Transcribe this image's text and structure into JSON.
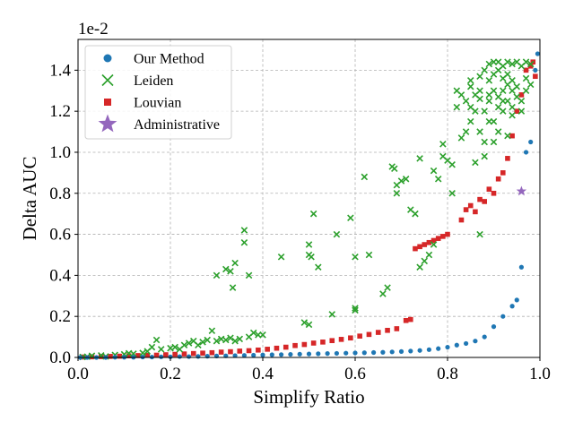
{
  "chart_data": {
    "type": "scatter",
    "title": "",
    "xlabel": "Simplify Ratio",
    "ylabel": "Delta AUC",
    "scale_label": "1e-2",
    "xlim": [
      0,
      1
    ],
    "ylim": [
      0,
      1.55
    ],
    "xticks": [
      0.0,
      0.2,
      0.4,
      0.6,
      0.8,
      1.0
    ],
    "xtick_labels": [
      "0.0",
      "0.2",
      "0.4",
      "0.6",
      "0.8",
      "1.0"
    ],
    "yticks": [
      0.0,
      0.2,
      0.4,
      0.6,
      0.8,
      1.0,
      1.2,
      1.4
    ],
    "ytick_labels": [
      "0.0",
      "0.2",
      "0.4",
      "0.6",
      "0.8",
      "1.0",
      "1.2",
      "1.4"
    ],
    "grid": true,
    "legend_position": "top-left",
    "series": [
      {
        "name": "Our Method",
        "marker": "circle",
        "color": "#1f77b4",
        "points": [
          [
            0.005,
            0.0
          ],
          [
            0.02,
            0.0
          ],
          [
            0.04,
            0.0
          ],
          [
            0.06,
            0.0
          ],
          [
            0.08,
            0.001
          ],
          [
            0.1,
            0.001
          ],
          [
            0.12,
            0.001
          ],
          [
            0.14,
            0.002
          ],
          [
            0.16,
            0.002
          ],
          [
            0.18,
            0.003
          ],
          [
            0.2,
            0.003
          ],
          [
            0.22,
            0.004
          ],
          [
            0.24,
            0.004
          ],
          [
            0.26,
            0.005
          ],
          [
            0.28,
            0.006
          ],
          [
            0.3,
            0.007
          ],
          [
            0.32,
            0.008
          ],
          [
            0.34,
            0.009
          ],
          [
            0.36,
            0.01
          ],
          [
            0.38,
            0.011
          ],
          [
            0.4,
            0.012
          ],
          [
            0.42,
            0.013
          ],
          [
            0.44,
            0.014
          ],
          [
            0.46,
            0.015
          ],
          [
            0.48,
            0.016
          ],
          [
            0.5,
            0.017
          ],
          [
            0.52,
            0.018
          ],
          [
            0.54,
            0.019
          ],
          [
            0.56,
            0.02
          ],
          [
            0.58,
            0.021
          ],
          [
            0.6,
            0.022
          ],
          [
            0.62,
            0.023
          ],
          [
            0.64,
            0.024
          ],
          [
            0.66,
            0.025
          ],
          [
            0.68,
            0.027
          ],
          [
            0.7,
            0.029
          ],
          [
            0.72,
            0.031
          ],
          [
            0.74,
            0.034
          ],
          [
            0.76,
            0.038
          ],
          [
            0.78,
            0.043
          ],
          [
            0.8,
            0.05
          ],
          [
            0.82,
            0.06
          ],
          [
            0.84,
            0.068
          ],
          [
            0.86,
            0.08
          ],
          [
            0.88,
            0.1
          ],
          [
            0.9,
            0.15
          ],
          [
            0.92,
            0.2
          ],
          [
            0.94,
            0.25
          ],
          [
            0.95,
            0.28
          ],
          [
            0.96,
            0.44
          ],
          [
            0.97,
            1.0
          ],
          [
            0.98,
            1.05
          ],
          [
            0.99,
            1.4
          ],
          [
            0.995,
            1.48
          ]
        ]
      },
      {
        "name": "Leiden",
        "marker": "x",
        "color": "#2ca02c",
        "points": [
          [
            0.01,
            0.002
          ],
          [
            0.02,
            0.004
          ],
          [
            0.03,
            0.008
          ],
          [
            0.05,
            0.01
          ],
          [
            0.06,
            0.005
          ],
          [
            0.08,
            0.012
          ],
          [
            0.1,
            0.015
          ],
          [
            0.11,
            0.02
          ],
          [
            0.12,
            0.018
          ],
          [
            0.14,
            0.022
          ],
          [
            0.15,
            0.03
          ],
          [
            0.16,
            0.05
          ],
          [
            0.17,
            0.085
          ],
          [
            0.18,
            0.04
          ],
          [
            0.2,
            0.045
          ],
          [
            0.21,
            0.05
          ],
          [
            0.22,
            0.04
          ],
          [
            0.23,
            0.06
          ],
          [
            0.24,
            0.07
          ],
          [
            0.25,
            0.08
          ],
          [
            0.26,
            0.06
          ],
          [
            0.27,
            0.075
          ],
          [
            0.28,
            0.085
          ],
          [
            0.29,
            0.13
          ],
          [
            0.3,
            0.08
          ],
          [
            0.31,
            0.09
          ],
          [
            0.32,
            0.085
          ],
          [
            0.33,
            0.095
          ],
          [
            0.34,
            0.08
          ],
          [
            0.35,
            0.09
          ],
          [
            0.37,
            0.1
          ],
          [
            0.38,
            0.12
          ],
          [
            0.39,
            0.11
          ],
          [
            0.4,
            0.11
          ],
          [
            0.3,
            0.4
          ],
          [
            0.32,
            0.43
          ],
          [
            0.33,
            0.42
          ],
          [
            0.335,
            0.34
          ],
          [
            0.34,
            0.46
          ],
          [
            0.36,
            0.56
          ],
          [
            0.36,
            0.62
          ],
          [
            0.37,
            0.4
          ],
          [
            0.44,
            0.49
          ],
          [
            0.5,
            0.5
          ],
          [
            0.5,
            0.55
          ],
          [
            0.505,
            0.49
          ],
          [
            0.51,
            0.7
          ],
          [
            0.52,
            0.44
          ],
          [
            0.49,
            0.17
          ],
          [
            0.5,
            0.16
          ],
          [
            0.55,
            0.21
          ],
          [
            0.56,
            0.6
          ],
          [
            0.59,
            0.68
          ],
          [
            0.6,
            0.49
          ],
          [
            0.6,
            0.24
          ],
          [
            0.6,
            0.23
          ],
          [
            0.62,
            0.88
          ],
          [
            0.63,
            0.5
          ],
          [
            0.66,
            0.31
          ],
          [
            0.67,
            0.34
          ],
          [
            0.68,
            0.93
          ],
          [
            0.685,
            0.92
          ],
          [
            0.69,
            0.84
          ],
          [
            0.69,
            0.8
          ],
          [
            0.7,
            0.86
          ],
          [
            0.71,
            0.87
          ],
          [
            0.72,
            0.72
          ],
          [
            0.73,
            0.7
          ],
          [
            0.74,
            0.97
          ],
          [
            0.74,
            0.44
          ],
          [
            0.75,
            0.47
          ],
          [
            0.76,
            0.5
          ],
          [
            0.77,
            0.55
          ],
          [
            0.77,
            0.91
          ],
          [
            0.78,
            0.87
          ],
          [
            0.79,
            1.04
          ],
          [
            0.79,
            0.98
          ],
          [
            0.8,
            0.96
          ],
          [
            0.81,
            0.8
          ],
          [
            0.81,
            0.94
          ],
          [
            0.82,
            1.3
          ],
          [
            0.82,
            1.22
          ],
          [
            0.83,
            1.07
          ],
          [
            0.84,
            1.25
          ],
          [
            0.84,
            1.1
          ],
          [
            0.85,
            1.35
          ],
          [
            0.85,
            1.15
          ],
          [
            0.86,
            1.2
          ],
          [
            0.86,
            1.28
          ],
          [
            0.87,
            1.3
          ],
          [
            0.87,
            1.1
          ],
          [
            0.88,
            1.4
          ],
          [
            0.88,
            1.2
          ],
          [
            0.88,
            1.05
          ],
          [
            0.89,
            1.35
          ],
          [
            0.89,
            1.25
          ],
          [
            0.9,
            1.44
          ],
          [
            0.9,
            1.3
          ],
          [
            0.9,
            1.15
          ],
          [
            0.91,
            1.4
          ],
          [
            0.91,
            1.27
          ],
          [
            0.92,
            1.42
          ],
          [
            0.92,
            1.3
          ],
          [
            0.92,
            1.2
          ],
          [
            0.93,
            1.38
          ],
          [
            0.93,
            1.25
          ],
          [
            0.94,
            1.43
          ],
          [
            0.94,
            1.3
          ],
          [
            0.94,
            1.18
          ],
          [
            0.95,
            1.44
          ],
          [
            0.95,
            1.32
          ],
          [
            0.96,
            1.42
          ],
          [
            0.96,
            1.25
          ],
          [
            0.97,
            1.3
          ],
          [
            0.97,
            1.44
          ],
          [
            0.98,
            1.43
          ],
          [
            0.98,
            1.33
          ],
          [
            0.87,
            0.6
          ],
          [
            0.86,
            0.95
          ],
          [
            0.88,
            0.98
          ],
          [
            0.89,
            1.43
          ],
          [
            0.91,
            1.44
          ],
          [
            0.93,
            1.44
          ],
          [
            0.96,
            1.2
          ],
          [
            0.85,
            1.32
          ],
          [
            0.87,
            1.37
          ],
          [
            0.9,
            1.38
          ],
          [
            0.92,
            1.36
          ],
          [
            0.94,
            1.35
          ],
          [
            0.83,
            1.28
          ],
          [
            0.85,
            1.22
          ],
          [
            0.87,
            1.26
          ],
          [
            0.89,
            1.28
          ],
          [
            0.91,
            1.22
          ],
          [
            0.93,
            1.33
          ],
          [
            0.95,
            1.27
          ],
          [
            0.97,
            1.36
          ],
          [
            0.89,
            1.15
          ],
          [
            0.91,
            1.1
          ],
          [
            0.93,
            1.08
          ],
          [
            0.9,
            1.05
          ],
          [
            0.94,
            1.22
          ],
          [
            0.92,
            1.25
          ]
        ]
      },
      {
        "name": "Louvian",
        "marker": "square",
        "color": "#d62728",
        "points": [
          [
            0.01,
            0.002
          ],
          [
            0.03,
            0.003
          ],
          [
            0.05,
            0.004
          ],
          [
            0.07,
            0.005
          ],
          [
            0.09,
            0.006
          ],
          [
            0.11,
            0.008
          ],
          [
            0.13,
            0.009
          ],
          [
            0.15,
            0.01
          ],
          [
            0.17,
            0.011
          ],
          [
            0.19,
            0.013
          ],
          [
            0.21,
            0.015
          ],
          [
            0.23,
            0.017
          ],
          [
            0.25,
            0.019
          ],
          [
            0.27,
            0.021
          ],
          [
            0.29,
            0.023
          ],
          [
            0.31,
            0.026
          ],
          [
            0.33,
            0.028
          ],
          [
            0.35,
            0.031
          ],
          [
            0.37,
            0.033
          ],
          [
            0.39,
            0.036
          ],
          [
            0.41,
            0.04
          ],
          [
            0.43,
            0.045
          ],
          [
            0.45,
            0.05
          ],
          [
            0.47,
            0.058
          ],
          [
            0.49,
            0.063
          ],
          [
            0.51,
            0.07
          ],
          [
            0.53,
            0.075
          ],
          [
            0.55,
            0.082
          ],
          [
            0.57,
            0.088
          ],
          [
            0.59,
            0.095
          ],
          [
            0.61,
            0.104
          ],
          [
            0.63,
            0.112
          ],
          [
            0.65,
            0.122
          ],
          [
            0.67,
            0.132
          ],
          [
            0.69,
            0.14
          ],
          [
            0.71,
            0.18
          ],
          [
            0.72,
            0.185
          ],
          [
            0.73,
            0.53
          ],
          [
            0.74,
            0.54
          ],
          [
            0.75,
            0.55
          ],
          [
            0.76,
            0.56
          ],
          [
            0.77,
            0.57
          ],
          [
            0.78,
            0.58
          ],
          [
            0.79,
            0.59
          ],
          [
            0.8,
            0.6
          ],
          [
            0.83,
            0.67
          ],
          [
            0.84,
            0.72
          ],
          [
            0.85,
            0.74
          ],
          [
            0.86,
            0.71
          ],
          [
            0.87,
            0.77
          ],
          [
            0.88,
            0.76
          ],
          [
            0.89,
            0.82
          ],
          [
            0.9,
            0.8
          ],
          [
            0.91,
            0.87
          ],
          [
            0.92,
            0.9
          ],
          [
            0.93,
            0.97
          ],
          [
            0.94,
            1.08
          ],
          [
            0.95,
            1.2
          ],
          [
            0.96,
            1.28
          ],
          [
            0.97,
            1.4
          ],
          [
            0.98,
            1.42
          ],
          [
            0.99,
            1.37
          ],
          [
            0.985,
            1.44
          ]
        ]
      },
      {
        "name": "Administrative",
        "marker": "star",
        "color": "#9467bd",
        "points": [
          [
            0.96,
            0.81
          ]
        ]
      }
    ]
  }
}
